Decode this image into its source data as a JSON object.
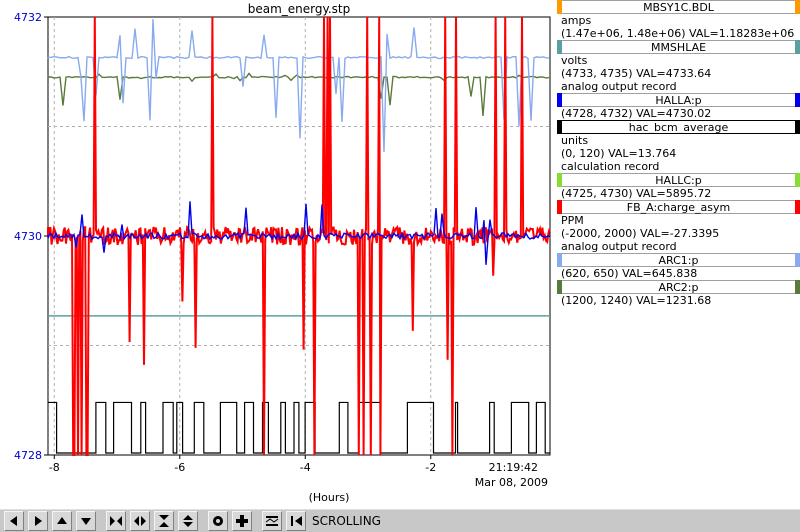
{
  "chart_data": {
    "type": "line",
    "title": "beam_energy.stp",
    "xlabel": "(Hours)",
    "ylabel": "",
    "x_ticks": [
      "-8",
      "-6",
      "-4",
      "-2"
    ],
    "y_ticks": [
      "4732",
      "4730",
      "4728"
    ],
    "xlim": [
      -8.1,
      -0.1
    ],
    "ylim": [
      4728,
      4732
    ],
    "grid": true,
    "time_stamp": "21:19:42",
    "date_stamp": "Mar 08, 2009",
    "series": [
      {
        "name": "MBSY1C.BDL",
        "color": "#ff9900",
        "units": "amps",
        "range": "(1.47e+06, 1.48e+06)",
        "value": "VAL=1.18283e+06",
        "record": "",
        "baseline": null
      },
      {
        "name": "MMSHLAE",
        "color": "#5aa0a0",
        "units": "volts",
        "range": "(4733, 4735)",
        "value": "VAL=4733.64",
        "record": "analog output record",
        "baseline": 4729.27
      },
      {
        "name": "HALLA:p",
        "color": "#0000ee",
        "units": "",
        "range": "(4728, 4732)",
        "value": "VAL=4730.02",
        "record": "",
        "baseline": 4730.0
      },
      {
        "name": "hac_bcm_average",
        "color": "#000000",
        "units": "units",
        "range": "(0, 120)",
        "value": "VAL=13.764",
        "record": "calculation record",
        "baseline": 4728.48
      },
      {
        "name": "HALLC:p",
        "color": "#88dd33",
        "units": "",
        "range": "(4725, 4730)",
        "value": "VAL=5895.72",
        "record": "",
        "baseline": null
      },
      {
        "name": "FB_A:charge_asym",
        "color": "#ff0000",
        "units": "PPM",
        "range": "(-2000, 2000)",
        "value": "VAL=-27.3395",
        "record": "analog output record",
        "baseline": 4730.0
      },
      {
        "name": "ARC1:p",
        "color": "#88aaee",
        "units": "",
        "range": "(620, 650)",
        "value": "VAL=645.838",
        "record": "",
        "baseline": 4731.63
      },
      {
        "name": "ARC2:p",
        "color": "#5a7a3a",
        "units": "",
        "range": "(1200, 1240)",
        "value": "VAL=1231.68",
        "record": "",
        "baseline": 4731.45
      }
    ]
  },
  "toolbar": {
    "icons": [
      "pan-left-icon",
      "pan-right-icon",
      "pan-up-icon",
      "pan-down-icon",
      "zoom-in-x-icon",
      "zoom-out-x-icon",
      "zoom-in-y-icon",
      "zoom-out-y-icon",
      "config-icon",
      "add-trace-icon",
      "autoscale-icon",
      "scroll-mode-icon"
    ],
    "mode_label": "SCROLLING"
  }
}
